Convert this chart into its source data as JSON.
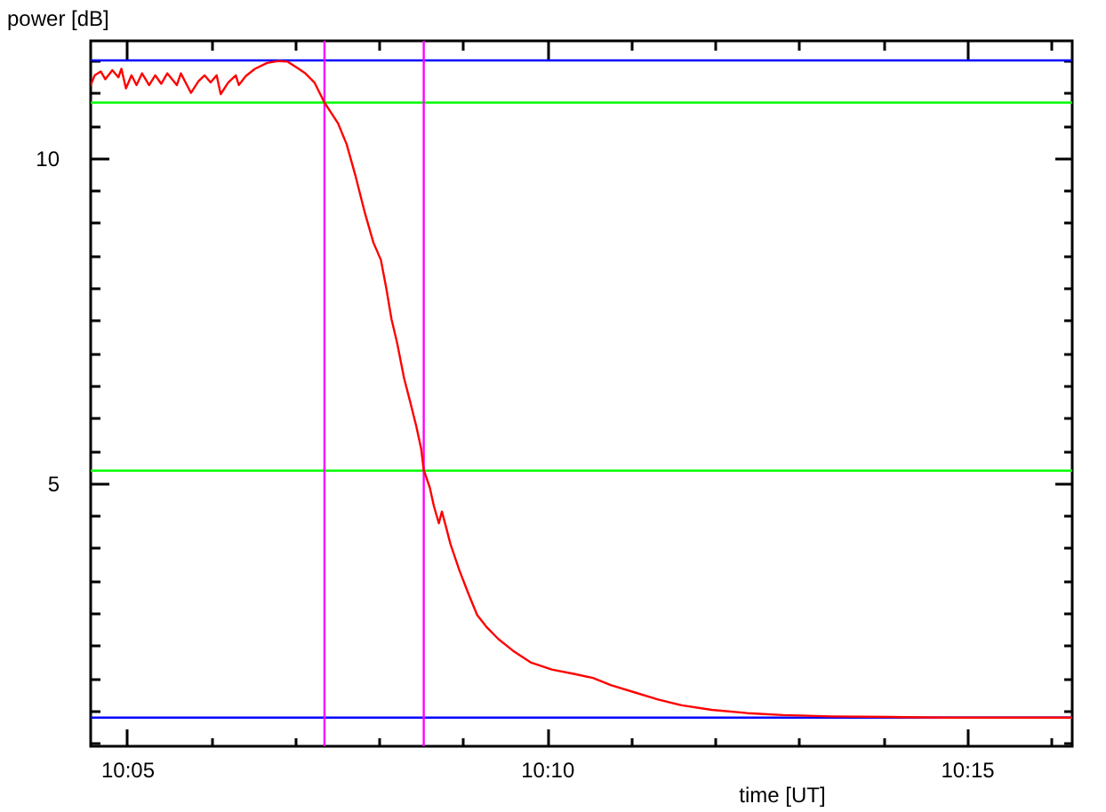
{
  "chart_data": {
    "type": "line",
    "xlabel": "time [UT]",
    "ylabel": "power [dB]",
    "x": [
      10.0761,
      10.0769,
      10.0781,
      10.079,
      10.0804,
      10.0816,
      10.0822,
      10.0831,
      10.0842,
      10.0852,
      10.0863,
      10.0877,
      10.0889,
      10.0901,
      10.0913,
      10.0932,
      10.094,
      10.096,
      10.0975,
      10.0987,
      10.0999,
      10.1011,
      10.1019,
      10.1034,
      10.1049,
      10.1055,
      10.1069,
      10.1087,
      10.1111,
      10.1134,
      10.1152,
      10.117,
      10.1187,
      10.1205,
      10.1225,
      10.1252,
      10.1269,
      10.1287,
      10.1305,
      10.1322,
      10.1337,
      10.1348,
      10.1358,
      10.1369,
      10.1383,
      10.1395,
      10.1407,
      10.1417,
      10.1422,
      10.1434,
      10.1442,
      10.1452,
      10.1458,
      10.1466,
      10.1475,
      10.1493,
      10.1511,
      10.1528,
      10.1546,
      10.157,
      10.1599,
      10.1634,
      10.1676,
      10.1722,
      10.1758,
      10.1793,
      10.184,
      10.1887,
      10.1934,
      10.1993,
      10.2064,
      10.2135,
      10.2229,
      10.2346,
      10.2464,
      10.2582,
      10.2709
    ],
    "series": [
      {
        "color": "#ff0000",
        "values": [
          11.12,
          11.27,
          11.33,
          11.21,
          11.35,
          11.24,
          11.37,
          11.07,
          11.27,
          11.12,
          11.3,
          11.12,
          11.27,
          11.14,
          11.3,
          11.12,
          11.3,
          11.0,
          11.18,
          11.27,
          11.16,
          11.27,
          10.98,
          11.16,
          11.27,
          11.12,
          11.26,
          11.37,
          11.46,
          11.49,
          11.48,
          11.39,
          11.3,
          11.16,
          10.85,
          10.53,
          10.21,
          9.71,
          9.16,
          8.7,
          8.43,
          7.98,
          7.52,
          7.16,
          6.61,
          6.25,
          5.88,
          5.52,
          5.2,
          4.93,
          4.65,
          4.38,
          4.56,
          4.33,
          4.06,
          3.65,
          3.29,
          2.97,
          2.79,
          2.6,
          2.42,
          2.24,
          2.13,
          2.06,
          2.0,
          1.89,
          1.78,
          1.67,
          1.58,
          1.51,
          1.46,
          1.43,
          1.41,
          1.4,
          1.39,
          1.39,
          1.39
        ]
      }
    ],
    "xlim": [
      10.0761,
      10.2709
    ],
    "ylim": [
      0.95,
      11.8
    ],
    "xticks": [
      {
        "value": 10.08333,
        "label": "10:05"
      },
      {
        "value": 10.1,
        "label": null
      },
      {
        "value": 10.11667,
        "label": null
      },
      {
        "value": 10.13333,
        "label": null
      },
      {
        "value": 10.15,
        "label": null
      },
      {
        "value": 10.16667,
        "label": "10:10"
      },
      {
        "value": 10.18333,
        "label": null
      },
      {
        "value": 10.2,
        "label": null
      },
      {
        "value": 10.21667,
        "label": null
      },
      {
        "value": 10.23333,
        "label": null
      },
      {
        "value": 10.25,
        "label": "10:15"
      },
      {
        "value": 10.26667,
        "label": null
      }
    ],
    "yticks": [
      {
        "value": 1,
        "label": null
      },
      {
        "value": 1.5,
        "label": null
      },
      {
        "value": 2,
        "label": null
      },
      {
        "value": 2.5,
        "label": null
      },
      {
        "value": 3,
        "label": null
      },
      {
        "value": 3.5,
        "label": null
      },
      {
        "value": 4,
        "label": null
      },
      {
        "value": 4.5,
        "label": null
      },
      5,
      {
        "value": 5.5,
        "label": null
      },
      {
        "value": 6,
        "label": null
      },
      {
        "value": 6.5,
        "label": null
      },
      {
        "value": 7,
        "label": null
      },
      {
        "value": 7.5,
        "label": null
      },
      {
        "value": 8,
        "label": null
      },
      {
        "value": 8.5,
        "label": null
      },
      {
        "value": 9,
        "label": null
      },
      {
        "value": 9.5,
        "label": null
      },
      10,
      {
        "value": 10.5,
        "label": null
      },
      {
        "value": 11,
        "label": null
      },
      {
        "value": 11.5,
        "label": null
      }
    ],
    "ref_lines": [
      {
        "axis": "y",
        "value": 11.5,
        "color": "#0000ff"
      },
      {
        "axis": "y",
        "value": 10.85,
        "color": "#00ff00"
      },
      {
        "axis": "y",
        "value": 5.19,
        "color": "#00ff00"
      },
      {
        "axis": "y",
        "value": 1.39,
        "color": "#0000ff"
      },
      {
        "axis": "x",
        "value": 10.1225,
        "color": "#ff00ff"
      },
      {
        "axis": "x",
        "value": 10.1422,
        "color": "#ff00ff"
      }
    ],
    "grid": false,
    "marker": "none",
    "line_style": "solid"
  }
}
